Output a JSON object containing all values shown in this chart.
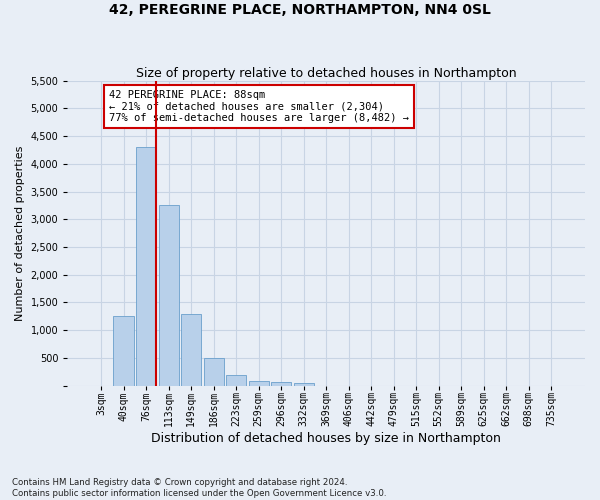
{
  "title": "42, PEREGRINE PLACE, NORTHAMPTON, NN4 0SL",
  "subtitle": "Size of property relative to detached houses in Northampton",
  "xlabel": "Distribution of detached houses by size in Northampton",
  "ylabel": "Number of detached properties",
  "footnote": "Contains HM Land Registry data © Crown copyright and database right 2024.\nContains public sector information licensed under the Open Government Licence v3.0.",
  "bar_labels": [
    "3sqm",
    "40sqm",
    "76sqm",
    "113sqm",
    "149sqm",
    "186sqm",
    "223sqm",
    "259sqm",
    "296sqm",
    "332sqm",
    "369sqm",
    "406sqm",
    "442sqm",
    "479sqm",
    "515sqm",
    "552sqm",
    "589sqm",
    "625sqm",
    "662sqm",
    "698sqm",
    "735sqm"
  ],
  "bar_values": [
    0,
    1250,
    4300,
    3250,
    1300,
    490,
    200,
    90,
    70,
    50,
    0,
    0,
    0,
    0,
    0,
    0,
    0,
    0,
    0,
    0,
    0
  ],
  "bar_color": "#b8d0ea",
  "bar_edge_color": "#6a9fcc",
  "ylim": [
    0,
    5500
  ],
  "yticks": [
    0,
    500,
    1000,
    1500,
    2000,
    2500,
    3000,
    3500,
    4000,
    4500,
    5000,
    5500
  ],
  "vline_color": "#cc0000",
  "vline_x_index": 2,
  "annotation_text": "42 PEREGRINE PLACE: 88sqm\n← 21% of detached houses are smaller (2,304)\n77% of semi-detached houses are larger (8,482) →",
  "annotation_box_color": "#ffffff",
  "annotation_box_edge_color": "#cc0000",
  "grid_color": "#c8d4e4",
  "background_color": "#e8eef6",
  "title_fontsize": 10,
  "subtitle_fontsize": 9,
  "xlabel_fontsize": 9,
  "ylabel_fontsize": 8,
  "tick_fontsize": 7,
  "ytick_fontsize": 7,
  "annotation_fontsize": 7.5
}
